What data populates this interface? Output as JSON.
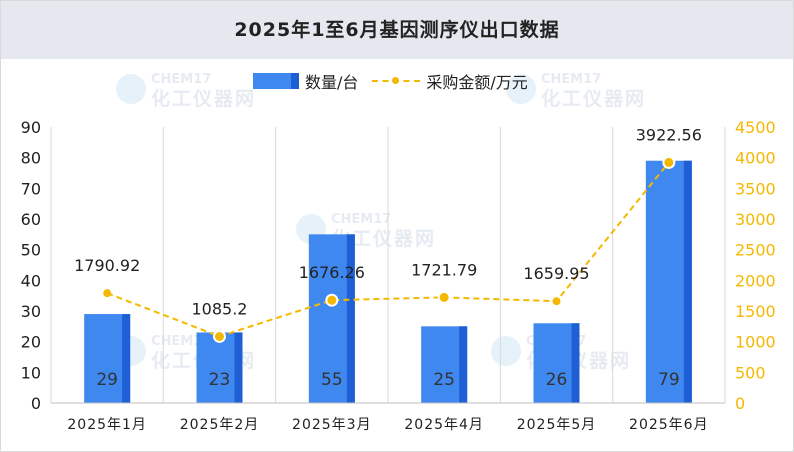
{
  "chart_data": {
    "type": "bar",
    "title": "2025年1至6月基因测序仪出口数据",
    "categories": [
      "2025年1月",
      "2025年2月",
      "2025年3月",
      "2025年4月",
      "2025年5月",
      "2025年6月"
    ],
    "series": [
      {
        "name": "数量/台",
        "type": "bar",
        "axis": "left",
        "values": [
          29,
          23,
          55,
          25,
          26,
          79
        ],
        "value_labels": [
          "29",
          "23",
          "55",
          "25",
          "26",
          "79"
        ]
      },
      {
        "name": "采购金额/万元",
        "type": "line",
        "axis": "right",
        "values": [
          1790.92,
          1085.2,
          1676.26,
          1721.79,
          1659.95,
          3922.56
        ],
        "value_labels": [
          "1790.92",
          "1085.2",
          "1676.26",
          "1721.79",
          "1659.95",
          "3922.56"
        ]
      }
    ],
    "y_left": {
      "min": 0,
      "max": 90,
      "ticks": [
        "0",
        "10",
        "20",
        "30",
        "40",
        "50",
        "60",
        "70",
        "80",
        "90"
      ]
    },
    "y_right": {
      "min": 0,
      "max": 4500,
      "ticks": [
        "0",
        "500",
        "1000",
        "1500",
        "2000",
        "2500",
        "3000",
        "3500",
        "4000",
        "4500"
      ]
    },
    "grid": "vertical",
    "legend_position": "top-center",
    "colors": {
      "bar": "#3f88f0",
      "bar_side": "#1e5fd6",
      "line": "#f5b800",
      "title_bg": "#e5e8ee"
    }
  },
  "watermark": {
    "brand": "CHEM17",
    "text": "化工仪器网"
  }
}
